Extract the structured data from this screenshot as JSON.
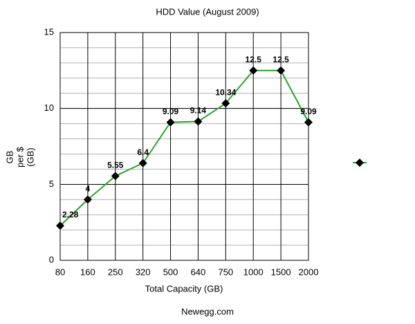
{
  "chart_data": {
    "type": "line",
    "title": "HDD Value (August 2009)",
    "subtitle": "Newegg.com",
    "x_label": "Total Capacity (GB)",
    "y_label": [
      "GB",
      "per $",
      "(GB)"
    ],
    "categories": [
      "80",
      "160",
      "250",
      "320",
      "500",
      "640",
      "750",
      "1000",
      "1500",
      "2000"
    ],
    "series": [
      {
        "color": "#2ca02c",
        "marker_color": "#000000",
        "values": [
          2.28,
          4,
          5.55,
          6.4,
          9.09,
          9.14,
          10.34,
          12.5,
          12.5,
          9.09
        ]
      }
    ],
    "ylim": [
      0,
      15
    ],
    "yticks": [
      0,
      5,
      10,
      15
    ],
    "grid": true,
    "minor_grid_step": 1
  }
}
